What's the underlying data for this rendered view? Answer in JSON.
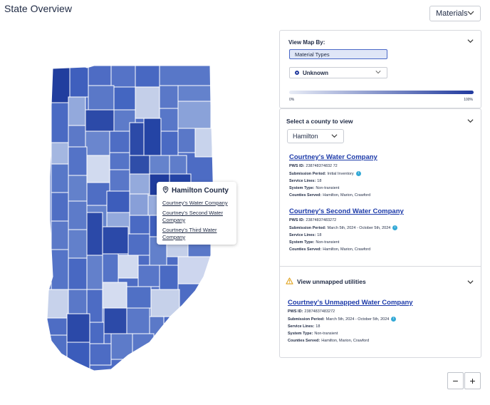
{
  "page": {
    "title": "State Overview"
  },
  "header": {
    "materials_label": "Materials"
  },
  "view_map": {
    "heading": "View Map By:",
    "material_types_label": "Material Types",
    "selected_option": "Unknown",
    "legend_min": "0%",
    "legend_max": "100%"
  },
  "county_panel": {
    "heading": "Select a county to view",
    "selected_county": "Hamilton",
    "labels": {
      "pws_id": "PWS ID:",
      "submission_period": "Submission Period:",
      "service_lines": "Service Lines:",
      "system_type": "System Type:",
      "counties_served": "Counties Served:"
    },
    "utilities": [
      {
        "name": "Courtney's Water Company",
        "pws_id": "238748374832 72",
        "submission_period": "Initial Inventory",
        "service_lines": "18",
        "system_type": "Non-transient",
        "counties_served": "Hamilton, Marion, Crawford"
      },
      {
        "name": "Courtney's Second Water Company",
        "pws_id": "23874837483272",
        "submission_period": "March 5th, 2024 - October 5th, 2024",
        "service_lines": "18",
        "system_type": "Non-transient",
        "counties_served": "Hamilton, Marion, Crawford"
      }
    ],
    "unmapped_heading": "View unmapped utilities",
    "unmapped": {
      "name": "Courtney's Unmapped Water Company",
      "pws_id": "23874837483272",
      "submission_period": "March 5th, 2024 - October 5th, 2024",
      "service_lines": "18",
      "system_type": "Non-transient",
      "counties_served": "Hamilton, Marion, Crawford"
    }
  },
  "tooltip": {
    "county": "Hamilton County",
    "links": [
      "Courtney's Water Company",
      "Courtney's Second Water Company",
      "Courtney's Third Water Company"
    ]
  },
  "zoom": {
    "minus": "−",
    "plus": "+"
  },
  "colors": {
    "accent": "#213a9e",
    "link": "#1c3aa9",
    "info": "#33a9d6",
    "warning": "#e0a21b"
  }
}
